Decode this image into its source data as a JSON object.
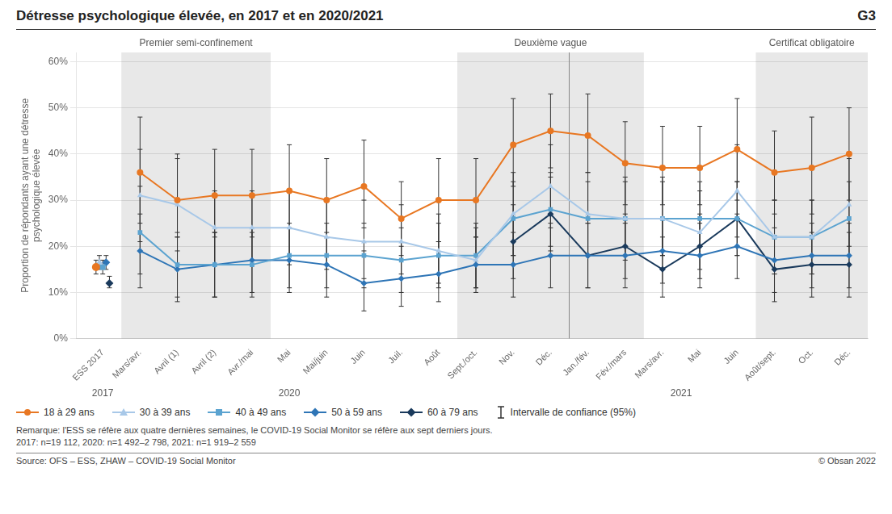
{
  "chart_data": {
    "type": "line",
    "title": "Détresse psychologique élevée, en 2017 et en 2020/2021",
    "title_right": "G3",
    "ylabel": "Proportion de répondants ayant une détresse\npsychologique élevée",
    "categories": [
      "ESS 2017",
      "Mars/avr.",
      "Avril (1)",
      "Avril (2)",
      "Avr./mai",
      "Mai",
      "Mai/juin",
      "Juin",
      "Juil.",
      "Août",
      "Sept./oct.",
      "Nov.",
      "Déc.",
      "Jan./fév.",
      "Fév./mars",
      "Mars/avr.",
      "Mai",
      "Juin",
      "Août/sept.",
      "Oct.",
      "Déc."
    ],
    "series": [
      {
        "name": "18 à 29 ans",
        "color": "#e87722",
        "marker": "circle",
        "values": [
          null,
          36,
          30,
          31,
          31,
          32,
          30,
          33,
          26,
          30,
          30,
          42,
          45,
          44,
          38,
          37,
          37,
          41,
          36,
          37,
          40
        ],
        "ci_lower": [
          null,
          25,
          22,
          22,
          22,
          24,
          22,
          24,
          18,
          21,
          22,
          33,
          37,
          36,
          29,
          29,
          29,
          30,
          27,
          27,
          30
        ],
        "ci_upper": [
          null,
          48,
          40,
          41,
          41,
          42,
          39,
          43,
          34,
          39,
          39,
          52,
          53,
          53,
          47,
          46,
          46,
          52,
          45,
          48,
          50
        ],
        "ess2017": {
          "value": 15.5,
          "ci_lower": 14.0,
          "ci_upper": 17.0
        }
      },
      {
        "name": "30 à 39 ans",
        "color": "#a8c8e8",
        "marker": "triangle",
        "values": [
          null,
          31,
          29,
          24,
          24,
          24,
          22,
          21,
          21,
          19,
          17,
          27,
          33,
          27,
          26,
          26,
          23,
          32,
          22,
          22,
          29
        ],
        "ci_lower": [
          null,
          21,
          19,
          16,
          16,
          16,
          15,
          13,
          14,
          12,
          11,
          18,
          24,
          18,
          17,
          18,
          15,
          22,
          14,
          14,
          20
        ],
        "ci_upper": [
          null,
          41,
          39,
          32,
          32,
          32,
          30,
          30,
          29,
          27,
          24,
          36,
          42,
          36,
          35,
          35,
          32,
          42,
          30,
          30,
          39
        ],
        "ess2017": {
          "value": 16.5,
          "ci_lower": 15.0,
          "ci_upper": 18.0
        }
      },
      {
        "name": "40 à 49 ans",
        "color": "#5ba3d0",
        "marker": "square",
        "values": [
          null,
          23,
          16,
          16,
          16,
          18,
          18,
          18,
          17,
          18,
          18,
          26,
          28,
          26,
          26,
          26,
          26,
          26,
          22,
          22,
          26
        ],
        "ci_lower": [
          null,
          14,
          9,
          9,
          9,
          11,
          11,
          11,
          10,
          11,
          11,
          18,
          20,
          18,
          18,
          18,
          18,
          18,
          14,
          14,
          18
        ],
        "ci_upper": [
          null,
          33,
          23,
          23,
          23,
          25,
          25,
          25,
          24,
          25,
          25,
          34,
          36,
          34,
          34,
          34,
          34,
          34,
          30,
          30,
          34
        ],
        "ess2017": {
          "value": 15.5,
          "ci_lower": 14.0,
          "ci_upper": 17.0
        }
      },
      {
        "name": "50 à 59 ans",
        "color": "#2e75b6",
        "marker": "diamond",
        "values": [
          null,
          19,
          15,
          16,
          17,
          17,
          16,
          12,
          13,
          14,
          16,
          16,
          18,
          18,
          18,
          19,
          18,
          20,
          17,
          18,
          18
        ],
        "ci_lower": [
          null,
          11,
          8,
          9,
          10,
          10,
          9,
          6,
          7,
          8,
          10,
          9,
          11,
          11,
          11,
          12,
          11,
          13,
          10,
          11,
          11
        ],
        "ci_upper": [
          null,
          27,
          22,
          23,
          24,
          24,
          23,
          19,
          20,
          21,
          22,
          23,
          25,
          25,
          25,
          26,
          25,
          27,
          24,
          25,
          25
        ],
        "ess2017": {
          "value": 16.5,
          "ci_lower": 15.0,
          "ci_upper": 18.0
        }
      },
      {
        "name": "60 à 79 ans",
        "color": "#1a3a5c",
        "marker": "diamond",
        "values": [
          null,
          null,
          null,
          null,
          null,
          null,
          null,
          null,
          null,
          null,
          null,
          21,
          27,
          18,
          20,
          15,
          20,
          26,
          15,
          16,
          16
        ],
        "ci_lower": [
          null,
          null,
          null,
          null,
          null,
          null,
          null,
          null,
          null,
          null,
          null,
          13,
          19,
          11,
          13,
          9,
          13,
          18,
          8,
          9,
          9
        ],
        "ci_upper": [
          null,
          null,
          null,
          null,
          null,
          null,
          null,
          null,
          null,
          null,
          null,
          29,
          35,
          25,
          27,
          22,
          27,
          34,
          22,
          23,
          23
        ],
        "ess2017": {
          "value": 12.0,
          "ci_lower": 11.0,
          "ci_upper": 13.5
        }
      }
    ],
    "ylim": [
      0,
      62
    ],
    "yticks": [
      {
        "value": 0,
        "label": "0%"
      },
      {
        "value": 10,
        "label": "10%"
      },
      {
        "value": 20,
        "label": "20%"
      },
      {
        "value": 30,
        "label": "30%"
      },
      {
        "value": 40,
        "label": "40%"
      },
      {
        "value": 50,
        "label": "50%"
      },
      {
        "value": 60,
        "label": "60%"
      }
    ],
    "grid": true,
    "shaded_regions": [
      {
        "label": "Premier semi-confinement",
        "x_start": 1,
        "x_end": 4
      },
      {
        "label": "Deuxième vague",
        "x_start": 10,
        "x_end": 14
      },
      {
        "label": "Certificat obligatoire",
        "x_start": 18,
        "x_end": 20
      }
    ],
    "shaded_color": "#e8e8e8",
    "errorbar_color": "#333333",
    "separators": [
      12.5
    ],
    "year_labels": [
      {
        "text": "2017",
        "x": 0
      },
      {
        "text": "2020",
        "x": 5
      },
      {
        "text": "2021",
        "x": 15.5
      }
    ],
    "ci_label": "Intervalle de confiance (95%)",
    "note_lines": [
      "Remarque: l'ESS se réfère aux quatre dernières semaines, le COVID-19 Social Monitor se réfère aux sept derniers jours.",
      "2017: n=19 112, 2020: n=1 492–2 798, 2021: n=1 919–2 559"
    ],
    "source": "Source: OFS – ESS, ZHAW – COVID-19 Social Monitor",
    "copyright": "© Obsan 2022"
  }
}
